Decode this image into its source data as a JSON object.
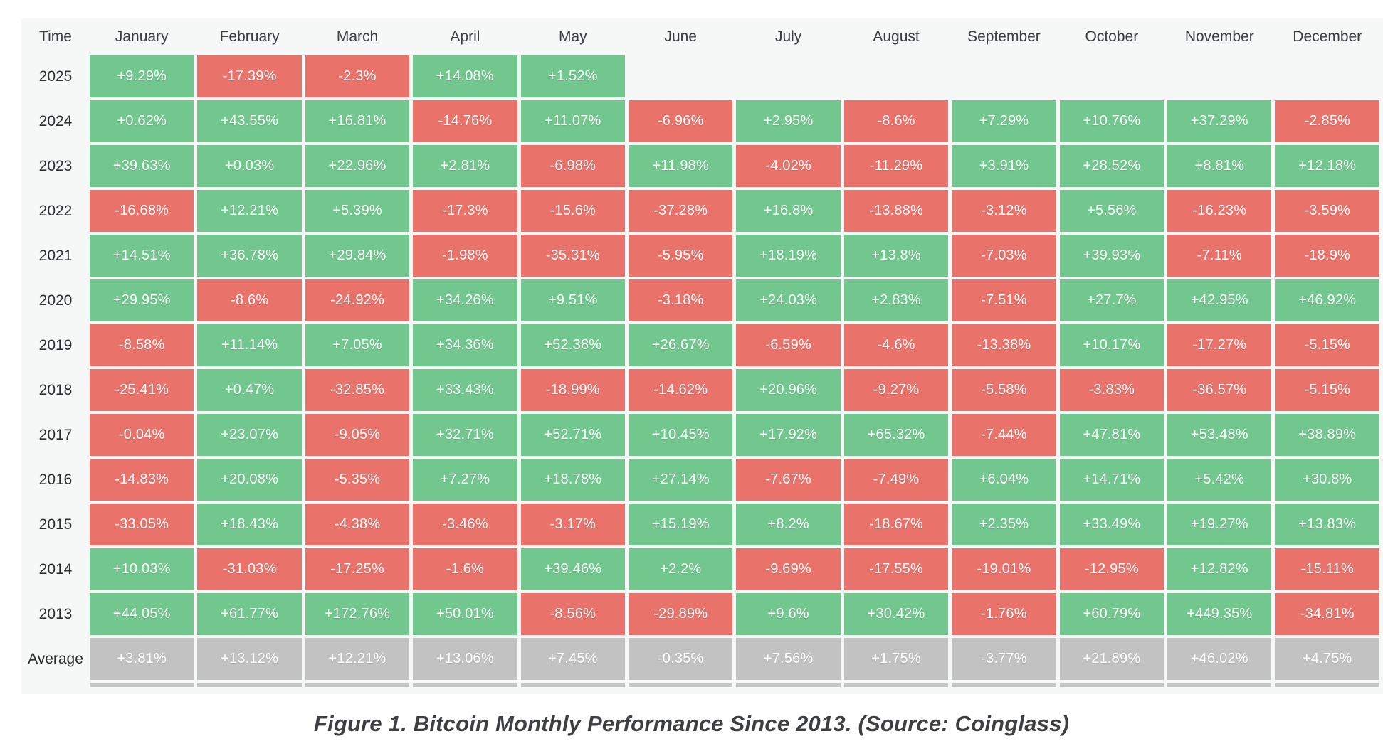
{
  "figure": {
    "caption": "Figure 1. Bitcoin Monthly Performance Since 2013. (Source: Coinglass)"
  },
  "chart_data": {
    "type": "heatmap",
    "title": "Bitcoin Monthly Performance Since 2013",
    "source": "Coinglass",
    "unit": "percent",
    "columns": [
      "Time",
      "January",
      "February",
      "March",
      "April",
      "May",
      "June",
      "July",
      "August",
      "September",
      "October",
      "November",
      "December"
    ],
    "rows": [
      {
        "label": "2025",
        "values": [
          "+9.29%",
          "-17.39%",
          "-2.3%",
          "+14.08%",
          "+1.52%",
          "",
          "",
          "",
          "",
          "",
          "",
          ""
        ]
      },
      {
        "label": "2024",
        "values": [
          "+0.62%",
          "+43.55%",
          "+16.81%",
          "-14.76%",
          "+11.07%",
          "-6.96%",
          "+2.95%",
          "-8.6%",
          "+7.29%",
          "+10.76%",
          "+37.29%",
          "-2.85%"
        ]
      },
      {
        "label": "2023",
        "values": [
          "+39.63%",
          "+0.03%",
          "+22.96%",
          "+2.81%",
          "-6.98%",
          "+11.98%",
          "-4.02%",
          "-11.29%",
          "+3.91%",
          "+28.52%",
          "+8.81%",
          "+12.18%"
        ]
      },
      {
        "label": "2022",
        "values": [
          "-16.68%",
          "+12.21%",
          "+5.39%",
          "-17.3%",
          "-15.6%",
          "-37.28%",
          "+16.8%",
          "-13.88%",
          "-3.12%",
          "+5.56%",
          "-16.23%",
          "-3.59%"
        ]
      },
      {
        "label": "2021",
        "values": [
          "+14.51%",
          "+36.78%",
          "+29.84%",
          "-1.98%",
          "-35.31%",
          "-5.95%",
          "+18.19%",
          "+13.8%",
          "-7.03%",
          "+39.93%",
          "-7.11%",
          "-18.9%"
        ]
      },
      {
        "label": "2020",
        "values": [
          "+29.95%",
          "-8.6%",
          "-24.92%",
          "+34.26%",
          "+9.51%",
          "-3.18%",
          "+24.03%",
          "+2.83%",
          "-7.51%",
          "+27.7%",
          "+42.95%",
          "+46.92%"
        ]
      },
      {
        "label": "2019",
        "values": [
          "-8.58%",
          "+11.14%",
          "+7.05%",
          "+34.36%",
          "+52.38%",
          "+26.67%",
          "-6.59%",
          "-4.6%",
          "-13.38%",
          "+10.17%",
          "-17.27%",
          "-5.15%"
        ]
      },
      {
        "label": "2018",
        "values": [
          "-25.41%",
          "+0.47%",
          "-32.85%",
          "+33.43%",
          "-18.99%",
          "-14.62%",
          "+20.96%",
          "-9.27%",
          "-5.58%",
          "-3.83%",
          "-36.57%",
          "-5.15%"
        ]
      },
      {
        "label": "2017",
        "values": [
          "-0.04%",
          "+23.07%",
          "-9.05%",
          "+32.71%",
          "+52.71%",
          "+10.45%",
          "+17.92%",
          "+65.32%",
          "-7.44%",
          "+47.81%",
          "+53.48%",
          "+38.89%"
        ]
      },
      {
        "label": "2016",
        "values": [
          "-14.83%",
          "+20.08%",
          "-5.35%",
          "+7.27%",
          "+18.78%",
          "+27.14%",
          "-7.67%",
          "-7.49%",
          "+6.04%",
          "+14.71%",
          "+5.42%",
          "+30.8%"
        ]
      },
      {
        "label": "2015",
        "values": [
          "-33.05%",
          "+18.43%",
          "-4.38%",
          "-3.46%",
          "-3.17%",
          "+15.19%",
          "+8.2%",
          "-18.67%",
          "+2.35%",
          "+33.49%",
          "+19.27%",
          "+13.83%"
        ]
      },
      {
        "label": "2014",
        "values": [
          "+10.03%",
          "-31.03%",
          "-17.25%",
          "-1.6%",
          "+39.46%",
          "+2.2%",
          "-9.69%",
          "-17.55%",
          "-19.01%",
          "-12.95%",
          "+12.82%",
          "-15.11%"
        ]
      },
      {
        "label": "2013",
        "values": [
          "+44.05%",
          "+61.77%",
          "+172.76%",
          "+50.01%",
          "-8.56%",
          "-29.89%",
          "+9.6%",
          "+30.42%",
          "-1.76%",
          "+60.79%",
          "+449.35%",
          "-34.81%"
        ]
      },
      {
        "label": "Average",
        "values": [
          "+3.81%",
          "+13.12%",
          "+12.21%",
          "+13.06%",
          "+7.45%",
          "-0.35%",
          "+7.56%",
          "+1.75%",
          "-3.77%",
          "+21.89%",
          "+46.02%",
          "+4.75%"
        ]
      }
    ],
    "colors": {
      "positive": "#72c78e",
      "negative": "#e9736b",
      "average": "#c2c2c2",
      "sliver": "#c6c6c6",
      "panel_bg": "#f6f7f7",
      "cell_text": "#ffffff"
    },
    "layout": {
      "legend": "none",
      "grid": "off",
      "truncated_next_row": true
    }
  }
}
